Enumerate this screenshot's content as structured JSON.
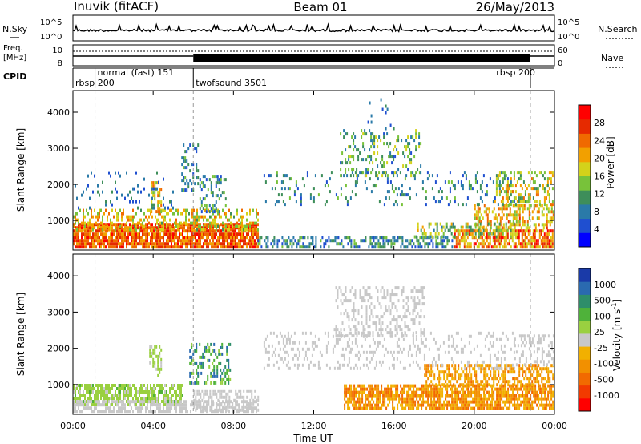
{
  "header": {
    "station": "Inuvik (fitACF)",
    "beam": "Beam 01",
    "date": "26/May/2013"
  },
  "noise_panel": {
    "left_label": "N.Sky",
    "right_label": "N.Search",
    "tick_top": "10^5",
    "tick_bottom": "10^0"
  },
  "freq_panel": {
    "left_label_1": "Freq.",
    "left_label_2": "[MHz]",
    "right_label": "Nave",
    "left_tick_top": "10",
    "left_tick_bottom": "8",
    "right_tick_top": "60",
    "right_tick_bottom": "0"
  },
  "cpid": {
    "label": "CPID",
    "segments": [
      {
        "name": "rbsp 200",
        "start_h": 0.0,
        "end_h": 1.1
      },
      {
        "name": "normal (fast) 151",
        "start_h": 1.1,
        "end_h": 6.0
      },
      {
        "name": "twofsound 3501",
        "start_h": 6.0,
        "end_h": 22.8
      },
      {
        "name": "rbsp 200",
        "start_h": 22.8,
        "end_h": 24.0
      }
    ]
  },
  "x_axis": {
    "label": "Time UT",
    "ticks": [
      "00:00",
      "04:00",
      "08:00",
      "12:00",
      "16:00",
      "20:00",
      "00:00"
    ],
    "range_h": [
      0,
      24
    ]
  },
  "chart_data": [
    {
      "type": "heatmap",
      "name": "power",
      "ylabel": "Slant Range [km]",
      "ylim": [
        180,
        4600
      ],
      "yticks": [
        1000,
        2000,
        3000,
        4000
      ],
      "colorbar": {
        "label": "Power [dB]",
        "ticks": [
          4,
          8,
          12,
          16,
          20,
          24,
          28
        ],
        "range": [
          0,
          32
        ],
        "colors": [
          "#0000ff",
          "#1f4fd0",
          "#2a7aa8",
          "#3e8e5a",
          "#78c23a",
          "#d4d21a",
          "#f2a000",
          "#f06a00",
          "#e62a00",
          "#ff0000"
        ]
      },
      "regions": [
        {
          "t": [
            0.0,
            9.2
          ],
          "r": [
            220,
            900
          ],
          "v": [
            20,
            30
          ],
          "d": 0.85
        },
        {
          "t": [
            0.0,
            9.2
          ],
          "r": [
            700,
            1250
          ],
          "v": [
            12,
            24
          ],
          "d": 0.4
        },
        {
          "t": [
            3.8,
            4.4
          ],
          "r": [
            1200,
            2050
          ],
          "v": [
            14,
            24
          ],
          "d": 0.5
        },
        {
          "t": [
            0.0,
            5.0
          ],
          "r": [
            1300,
            2300
          ],
          "v": [
            4,
            12
          ],
          "d": 0.08
        },
        {
          "t": [
            5.4,
            6.2
          ],
          "r": [
            1800,
            3100
          ],
          "v": [
            4,
            14
          ],
          "d": 0.35
        },
        {
          "t": [
            6.3,
            7.6
          ],
          "r": [
            1200,
            2200
          ],
          "v": [
            4,
            16
          ],
          "d": 0.35
        },
        {
          "t": [
            9.2,
            19.0
          ],
          "r": [
            220,
            500
          ],
          "v": [
            4,
            14
          ],
          "d": 0.45
        },
        {
          "t": [
            19.0,
            24.0
          ],
          "r": [
            220,
            750
          ],
          "v": [
            16,
            30
          ],
          "d": 0.75
        },
        {
          "t": [
            20.0,
            24.0
          ],
          "r": [
            750,
            1400
          ],
          "v": [
            14,
            26
          ],
          "d": 0.4
        },
        {
          "t": [
            9.5,
            22.0
          ],
          "r": [
            1400,
            2300
          ],
          "v": [
            4,
            14
          ],
          "d": 0.14
        },
        {
          "t": [
            13.3,
            17.3
          ],
          "r": [
            2200,
            3500
          ],
          "v": [
            6,
            18
          ],
          "d": 0.22
        },
        {
          "t": [
            14.6,
            16.0
          ],
          "r": [
            3500,
            4300
          ],
          "v": [
            4,
            10
          ],
          "d": 0.1
        },
        {
          "t": [
            21.0,
            24.0
          ],
          "r": [
            1400,
            2300
          ],
          "v": [
            10,
            24
          ],
          "d": 0.35
        },
        {
          "t": [
            17.0,
            22.0
          ],
          "r": [
            500,
            900
          ],
          "v": [
            8,
            20
          ],
          "d": 0.3
        }
      ]
    },
    {
      "type": "heatmap",
      "name": "velocity",
      "ylabel": "Slant Range [km]",
      "ylim": [
        180,
        4600
      ],
      "yticks": [
        1000,
        2000,
        3000,
        4000
      ],
      "colorbar": {
        "label": "Velocity [m s^-1]",
        "ticks": [
          "1000",
          "500",
          "100",
          "25",
          "-25",
          "-100",
          "-500",
          "-1000"
        ],
        "range": [
          -1200,
          1200
        ],
        "colors": [
          "#ff0000",
          "#f23a00",
          "#f26a00",
          "#f29000",
          "#f2b000",
          "#c8c8c8",
          "#9ad040",
          "#4fb23a",
          "#2e8e6a",
          "#2a6ab0",
          "#1a3aa8"
        ]
      },
      "regions": [
        {
          "t": [
            0.0,
            5.5
          ],
          "r": [
            400,
            950
          ],
          "v": [
            80,
            350
          ],
          "d": 0.7
        },
        {
          "t": [
            0.0,
            9.2
          ],
          "r": [
            220,
            500
          ],
          "v": [
            -20,
            20
          ],
          "d": 0.55
        },
        {
          "t": [
            3.8,
            4.4
          ],
          "r": [
            1200,
            2050
          ],
          "v": [
            60,
            250
          ],
          "d": 0.5
        },
        {
          "t": [
            5.8,
            7.8
          ],
          "r": [
            1000,
            2100
          ],
          "v": [
            200,
            900
          ],
          "d": 0.4
        },
        {
          "t": [
            6.0,
            9.2
          ],
          "r": [
            250,
            800
          ],
          "v": [
            -20,
            20
          ],
          "d": 0.5
        },
        {
          "t": [
            13.5,
            24.0
          ],
          "r": [
            300,
            950
          ],
          "v": [
            -700,
            -120
          ],
          "d": 0.75
        },
        {
          "t": [
            17.5,
            24.0
          ],
          "r": [
            950,
            1500
          ],
          "v": [
            -600,
            -120
          ],
          "d": 0.5
        },
        {
          "t": [
            9.5,
            22.0
          ],
          "r": [
            1400,
            2400
          ],
          "v": [
            -20,
            20
          ],
          "d": 0.2
        },
        {
          "t": [
            13.0,
            17.5
          ],
          "r": [
            2300,
            3700
          ],
          "v": [
            -20,
            20
          ],
          "d": 0.3
        },
        {
          "t": [
            22.0,
            24.0
          ],
          "r": [
            1500,
            2300
          ],
          "v": [
            -20,
            60
          ],
          "d": 0.35
        }
      ]
    }
  ]
}
